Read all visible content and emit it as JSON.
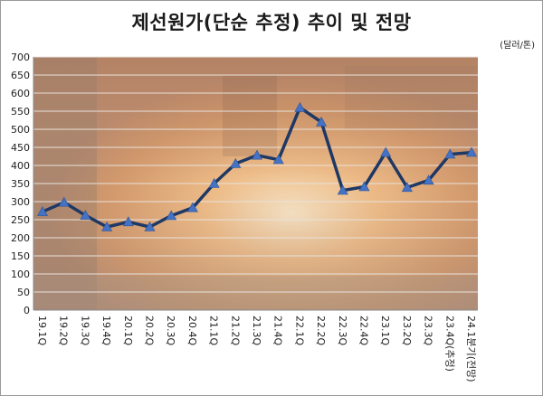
{
  "chart_data": {
    "type": "line",
    "title": "제선원가(단순 추정) 추이 및 전망",
    "unit_label": "(달러/톤)",
    "xlabel": "",
    "ylabel": "",
    "ylim": [
      0,
      700
    ],
    "ytick_step": 50,
    "grid": true,
    "legend": "none",
    "categories": [
      "19.1Q",
      "19.2Q",
      "19.3Q",
      "19.4Q",
      "20.1Q",
      "20.2Q",
      "20.3Q",
      "20.4Q",
      "21.1Q",
      "21.2Q",
      "21.3Q",
      "21.4Q",
      "22.1Q",
      "22.2Q",
      "22.3Q",
      "22.4Q",
      "23.1Q",
      "23.2Q",
      "23.3Q",
      "23.4Q(추정)",
      "24.1분기(전망)"
    ],
    "series": [
      {
        "values": [
          272,
          298,
          262,
          230,
          244,
          230,
          261,
          283,
          350,
          405,
          428,
          416,
          560,
          520,
          331,
          341,
          436,
          339,
          359,
          431,
          436
        ]
      }
    ],
    "colors": {
      "line": "#1f3864",
      "marker": "#4472c4",
      "grid": "#e8e2dc"
    }
  }
}
